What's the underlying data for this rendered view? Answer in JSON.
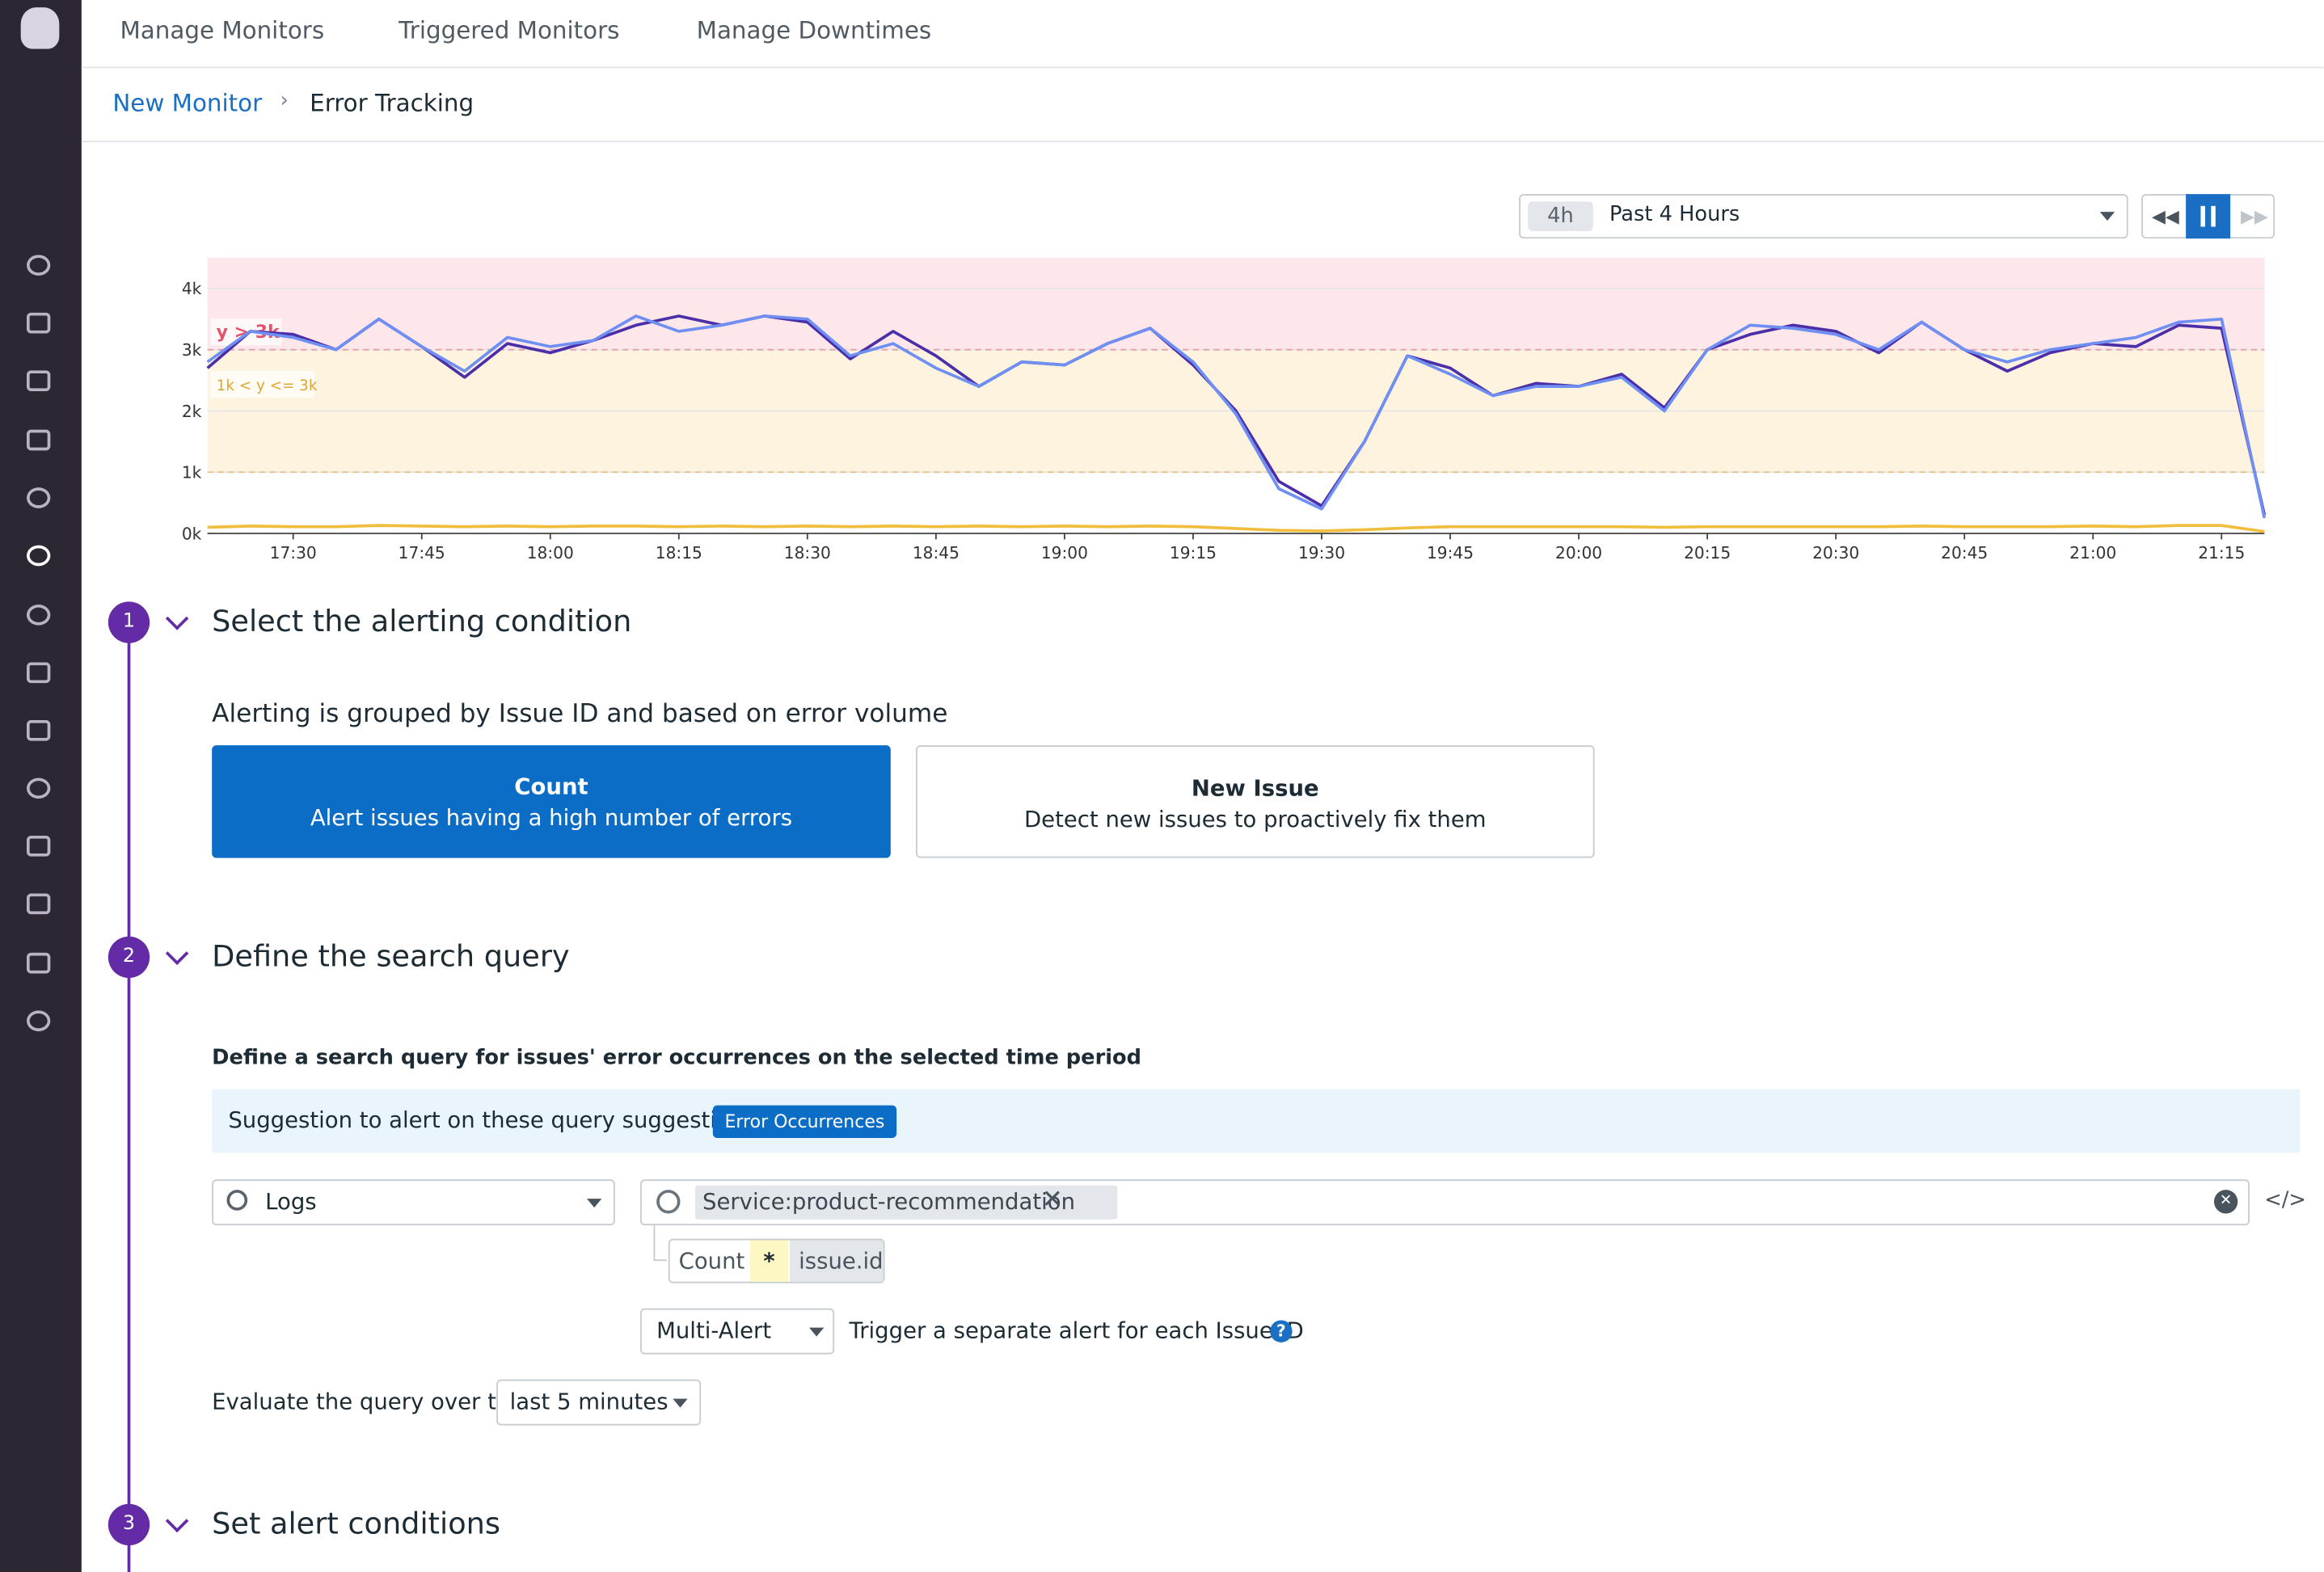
{
  "nav": {
    "tabs": [
      "Manage Monitors",
      "Triggered Monitors",
      "Manage Downtimes"
    ]
  },
  "breadcrumb": {
    "parent": "New Monitor",
    "current": "Error Tracking"
  },
  "time_picker": {
    "badge": "4h",
    "label": "Past 4 Hours"
  },
  "chart_data": {
    "type": "line",
    "x": [
      "17:20",
      "17:25",
      "17:30",
      "17:35",
      "17:40",
      "17:45",
      "17:50",
      "17:55",
      "18:00",
      "18:05",
      "18:10",
      "18:15",
      "18:20",
      "18:25",
      "18:30",
      "18:35",
      "18:40",
      "18:45",
      "18:50",
      "18:55",
      "19:00",
      "19:05",
      "19:10",
      "19:15",
      "19:20",
      "19:25",
      "19:30",
      "19:35",
      "19:40",
      "19:45",
      "19:50",
      "19:55",
      "20:00",
      "20:05",
      "20:10",
      "20:15",
      "20:20",
      "20:25",
      "20:30",
      "20:35",
      "20:40",
      "20:45",
      "20:50",
      "20:55",
      "21:00",
      "21:05",
      "21:10",
      "21:15",
      "21:20"
    ],
    "series": [
      {
        "color": "#4b2fa8",
        "values": [
          2700,
          3300,
          3250,
          3000,
          3500,
          3050,
          2550,
          3100,
          2950,
          3150,
          3400,
          3550,
          3400,
          3550,
          3450,
          2850,
          3300,
          2900,
          2400,
          2800,
          2750,
          3100,
          3350,
          2750,
          2000,
          850,
          450,
          1500,
          2900,
          2700,
          2250,
          2450,
          2400,
          2600,
          2050,
          3000,
          3250,
          3400,
          3300,
          2950,
          3450,
          3000,
          2650,
          2950,
          3100,
          3050,
          3400,
          3350,
          300
        ]
      },
      {
        "color": "#6f8ff2",
        "values": [
          2800,
          3300,
          3200,
          3000,
          3500,
          3050,
          2650,
          3200,
          3050,
          3150,
          3550,
          3300,
          3400,
          3550,
          3500,
          2900,
          3100,
          2700,
          2400,
          2800,
          2750,
          3100,
          3350,
          2800,
          1950,
          730,
          400,
          1500,
          2900,
          2600,
          2250,
          2400,
          2400,
          2550,
          2000,
          3000,
          3400,
          3350,
          3250,
          3000,
          3450,
          3000,
          2800,
          3000,
          3100,
          3200,
          3450,
          3500,
          250
        ]
      },
      {
        "color": "#f0be3c",
        "values": [
          100,
          120,
          110,
          110,
          130,
          120,
          110,
          120,
          110,
          120,
          120,
          110,
          120,
          110,
          120,
          110,
          120,
          110,
          120,
          110,
          120,
          110,
          120,
          110,
          80,
          50,
          40,
          60,
          90,
          110,
          110,
          110,
          110,
          110,
          100,
          110,
          110,
          110,
          110,
          110,
          120,
          110,
          110,
          110,
          120,
          110,
          130,
          130,
          30
        ]
      }
    ],
    "xlim": [
      "17:20",
      "21:20"
    ],
    "xticks": [
      "17:30",
      "17:45",
      "18:00",
      "18:15",
      "18:30",
      "18:45",
      "19:00",
      "19:15",
      "19:30",
      "19:45",
      "20:00",
      "20:15",
      "20:30",
      "20:45",
      "21:00",
      "21:15"
    ],
    "ylim": [
      0,
      4500
    ],
    "yticks": [
      {
        "value": 0,
        "label": "0k"
      },
      {
        "value": 1000,
        "label": "1k"
      },
      {
        "value": 2000,
        "label": "2k"
      },
      {
        "value": 3000,
        "label": "3k"
      },
      {
        "value": 4000,
        "label": "4k"
      }
    ],
    "grid": true,
    "thresholds": [
      {
        "label": "y > 3k",
        "value": 3000,
        "color": "#fde7ea",
        "line_color": "#e3a0a8",
        "text_color": "#e0556b"
      },
      {
        "label": "1k < y <= 3k",
        "value": 1000,
        "color": "#fdf3df",
        "line_color": "#e6c48a",
        "text_color": "#e0a630"
      }
    ]
  },
  "steps": [
    {
      "number": 1,
      "title": "Select the alerting condition"
    },
    {
      "number": 2,
      "title": "Define the search query"
    },
    {
      "number": 3,
      "title": "Set alert conditions"
    }
  ],
  "alerting": {
    "intro": "Alerting is grouped by Issue ID and based on error volume",
    "options": [
      {
        "title": "Count",
        "description": "Alert issues having a high number of errors"
      },
      {
        "title": "New Issue",
        "description": "Detect new issues to proactively fix them"
      }
    ]
  },
  "query": {
    "heading": "Define a search query for issues' error occurrences on the selected time period",
    "suggestion_text": "Suggestion to alert on these query suggestions:",
    "suggestion_tag": "Error Occurrences",
    "source": "Logs",
    "filter": "Service:product-recommendation",
    "aggregation": {
      "function": "Count",
      "field": "*",
      "group_by": "issue.id"
    },
    "alert_type": "Multi-Alert",
    "alert_type_note": "Trigger a separate alert for each Issue ID",
    "evaluate_label": "Evaluate the query over the",
    "evaluate_window": "last 5 minutes"
  }
}
